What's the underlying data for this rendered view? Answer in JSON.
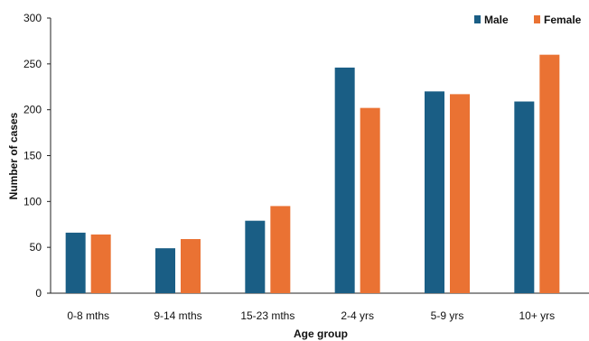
{
  "chart_data": {
    "type": "bar",
    "title": "",
    "xlabel": "Age group",
    "ylabel": "Number of cases",
    "categories": [
      "0-8 mths",
      "9-14 mths",
      "15-23 mths",
      "2-4 yrs",
      "5-9 yrs",
      "10+  yrs"
    ],
    "series": [
      {
        "name": "Male",
        "color": "#1a5e85",
        "values": [
          66,
          49,
          79,
          246,
          220,
          209
        ]
      },
      {
        "name": "Female",
        "color": "#ea7233",
        "values": [
          64,
          59,
          95,
          202,
          217,
          260
        ]
      }
    ],
    "ylim": [
      0,
      300
    ],
    "yticks": [
      "0",
      "50",
      "100",
      "150",
      "200",
      "250",
      "300"
    ],
    "grid": false,
    "legend": "top-right"
  }
}
